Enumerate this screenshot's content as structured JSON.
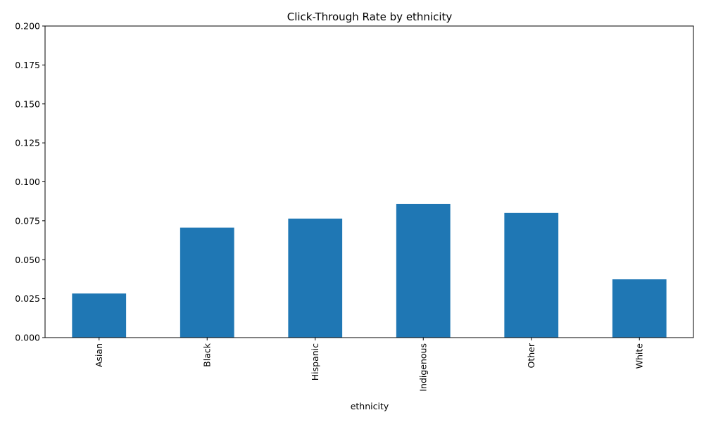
{
  "chart_data": {
    "type": "bar",
    "title": "Click-Through Rate by ethnicity",
    "xlabel": "ethnicity",
    "ylabel": "",
    "categories": [
      "Asian",
      "Black",
      "Hispanic",
      "Indigenous",
      "Other",
      "White"
    ],
    "values": [
      0.0283,
      0.0706,
      0.0764,
      0.0858,
      0.08,
      0.0374
    ],
    "ylim": [
      0,
      0.2
    ],
    "yticks": [
      0.0,
      0.025,
      0.05,
      0.075,
      0.1,
      0.125,
      0.15,
      0.175,
      0.2
    ],
    "ytick_labels": [
      "0.000",
      "0.025",
      "0.050",
      "0.075",
      "0.100",
      "0.125",
      "0.150",
      "0.175",
      "0.200"
    ],
    "bar_color": "#1f77b4",
    "grid": false,
    "legend": "none"
  }
}
